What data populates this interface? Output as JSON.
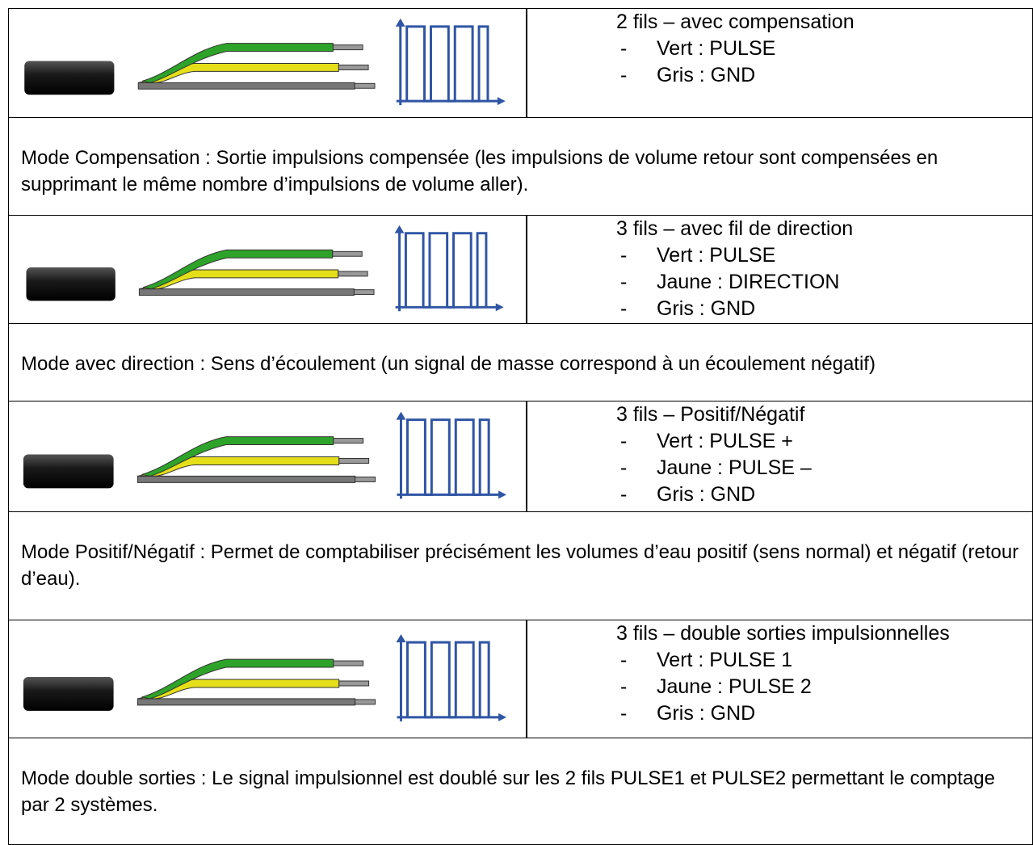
{
  "rows": [
    {
      "heading": "2 fils – avec compensation",
      "items": [
        "Vert : PULSE",
        "Gris : GND"
      ],
      "description": "Mode Compensation : Sortie impulsions compensée (les impulsions de volume retour sont compensées en supprimant le même nombre d’impulsions de volume aller)."
    },
    {
      "heading": "3 fils – avec fil de direction",
      "items": [
        "Vert : PULSE",
        "Jaune : DIRECTION",
        "Gris : GND"
      ],
      "description": "Mode avec direction : Sens d’écoulement (un signal de masse correspond à un écoulement négatif)"
    },
    {
      "heading": "3 fils – Positif/Négatif",
      "items": [
        "Vert : PULSE +",
        "Jaune : PULSE –",
        "Gris : GND"
      ],
      "description": "Mode Positif/Négatif : Permet de comptabiliser précisément les volumes d’eau positif (sens normal) et négatif (retour d’eau)."
    },
    {
      "heading": "3 fils – double sorties impulsionnelles",
      "items": [
        "Vert : PULSE 1",
        "Jaune : PULSE 2",
        "Gris : GND"
      ],
      "description": "Mode double sorties : Le signal impulsionnel est doublé sur les 2 fils PULSE1 et PULSE2 permettant le comptage par 2 systèmes."
    }
  ]
}
